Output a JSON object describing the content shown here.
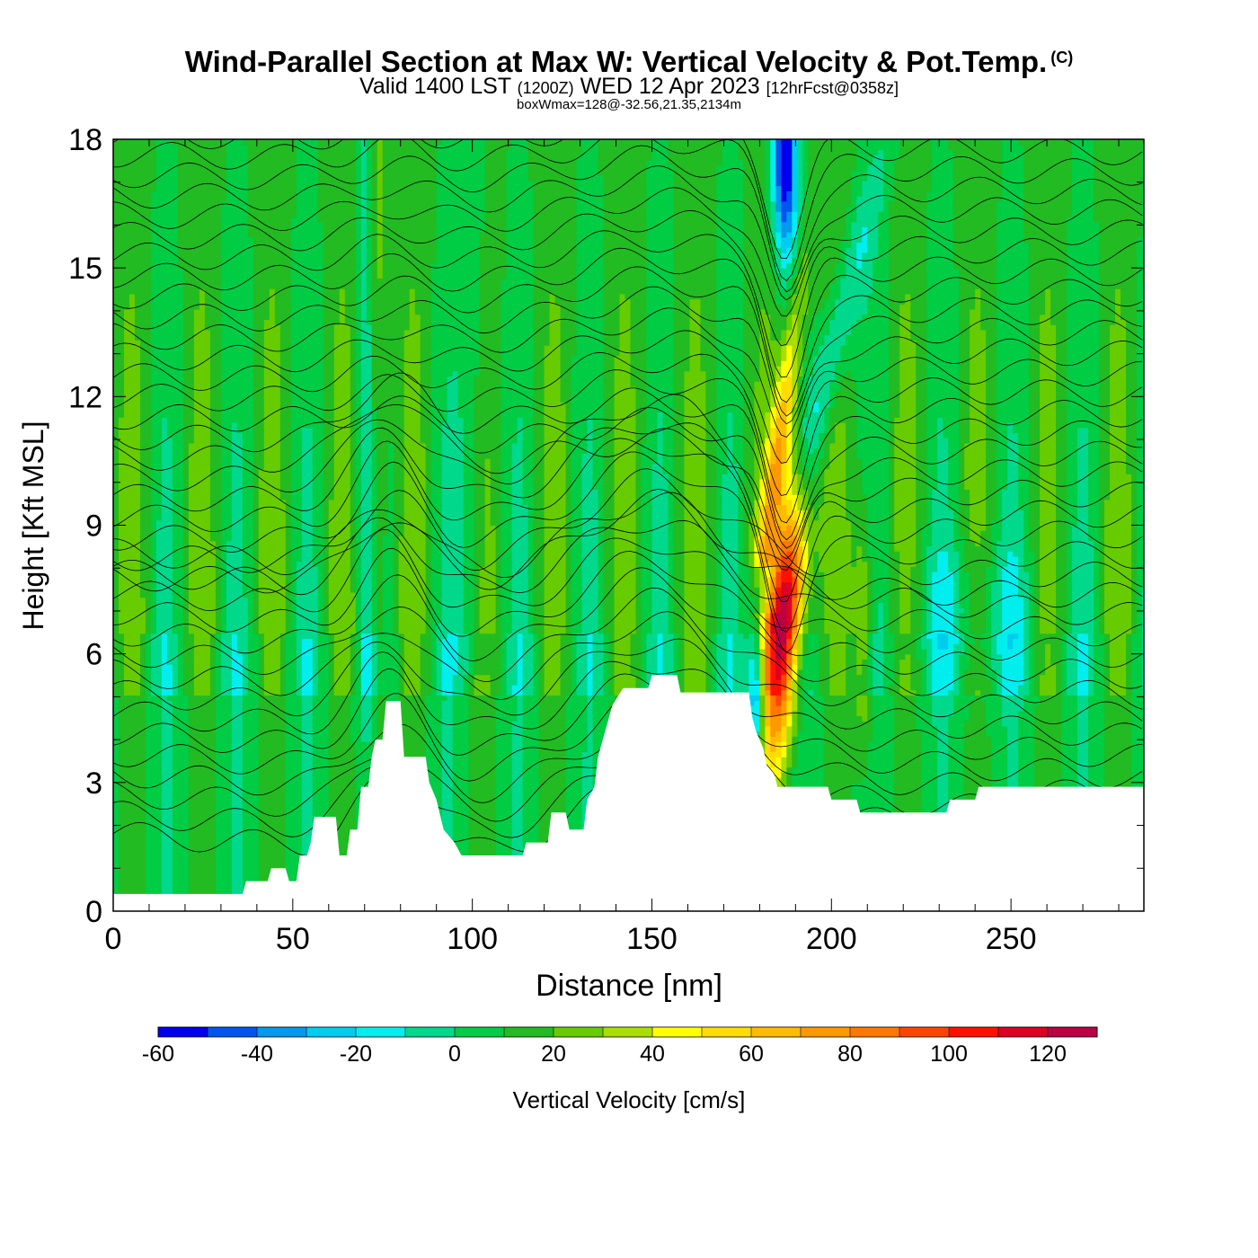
{
  "header": {
    "title": "Wind-Parallel Section at Max W: Vertical Velocity & Pot.Temp.",
    "copyright": "(C)",
    "valid_prefix": "Valid 1400 LST",
    "valid_zulu": "(1200Z)",
    "valid_date": "WED 12 Apr 2023",
    "forecast": "[12hrFcst@0358z]",
    "info": "boxWmax=128@-32.56,21.35,2134m"
  },
  "chart_data": {
    "type": "heatmap",
    "title": "Wind-Parallel Section at Max W: Vertical Velocity & Pot.Temp.",
    "xlabel": "Distance [nm]",
    "ylabel": "Height [Kft MSL]",
    "xlim": [
      0,
      287
    ],
    "ylim": [
      0,
      18
    ],
    "x_ticks": [
      0,
      50,
      100,
      150,
      200,
      250
    ],
    "y_ticks": [
      0,
      3,
      6,
      9,
      12,
      15,
      18
    ],
    "colorbar": {
      "label": "Vertical Velocity [cm/s]",
      "levels": [
        -60,
        -50,
        -40,
        -30,
        -20,
        -10,
        0,
        10,
        20,
        30,
        40,
        50,
        60,
        70,
        80,
        90,
        100,
        110,
        120,
        130
      ],
      "tick_values": [
        -60,
        -40,
        -20,
        0,
        20,
        40,
        60,
        80,
        100,
        120
      ],
      "colors": [
        "#0000ee",
        "#0055ee",
        "#0099ee",
        "#00ccee",
        "#00eeee",
        "#00d88c",
        "#00cc44",
        "#22bb22",
        "#66cc00",
        "#aadd00",
        "#ffff00",
        "#ffdd00",
        "#ffbb00",
        "#ff9900",
        "#ff7700",
        "#ff4400",
        "#ff1100",
        "#dd0022",
        "#bb0044"
      ]
    },
    "max_w": {
      "value": 128,
      "x": 187,
      "height_kft": 7
    }
  }
}
